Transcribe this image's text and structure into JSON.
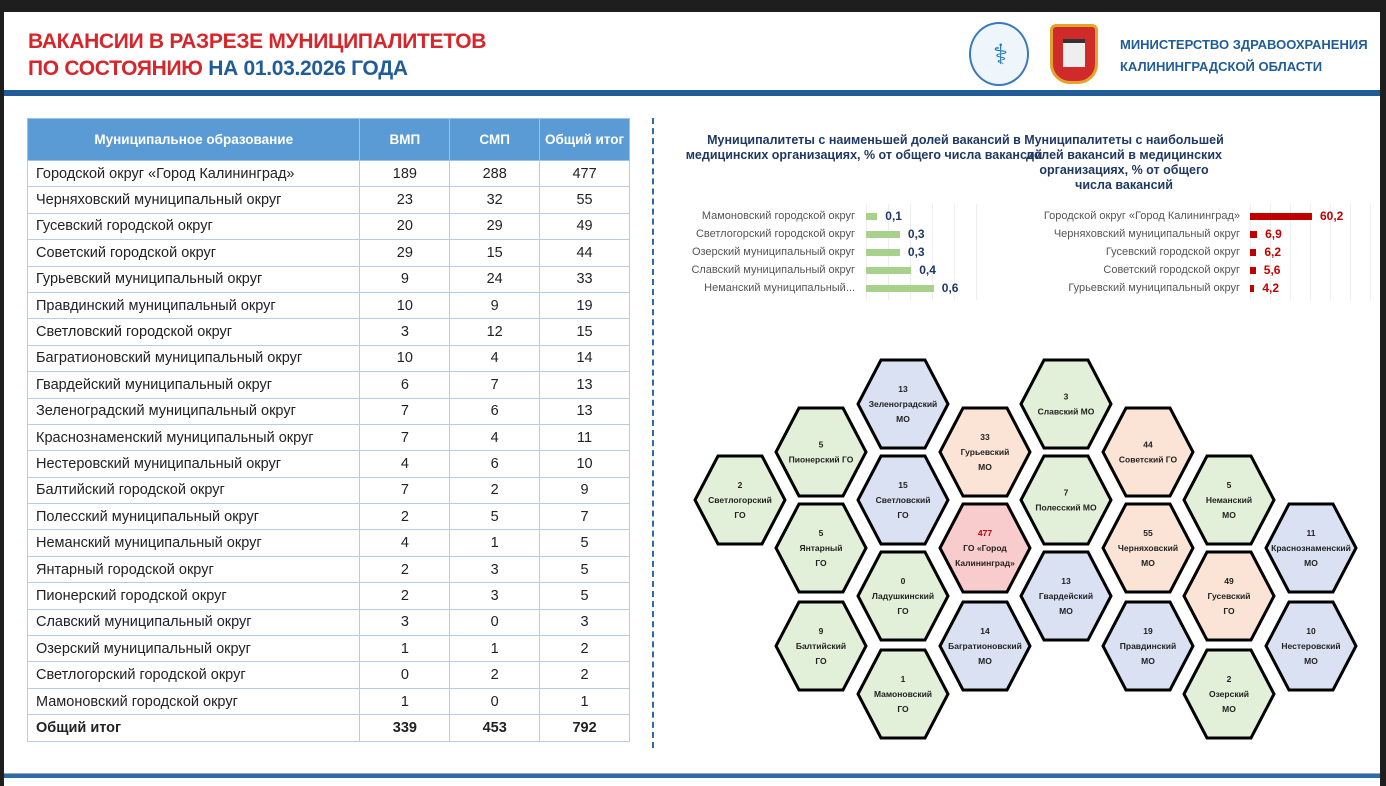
{
  "header": {
    "title_line1": "ВАКАНСИИ В РАЗРЕЗЕ МУНИЦИПАЛИТЕТОВ",
    "title_line2_red": "ПО СОСТОЯНИЮ",
    "title_line2_blue": "НА 01.03.2026 ГОДА",
    "ministry_line1": "МИНИСТЕРСТВО ЗДРАВООХРАНЕНИЯ",
    "ministry_line2": "КАЛИНИНГРАДСКОЙ ОБЛАСТИ"
  },
  "table": {
    "headers": [
      "Муниципальное образование",
      "ВМП",
      "СМП",
      "Общий итог"
    ],
    "rows": [
      [
        "Городской округ «Город Калининград»",
        "189",
        "288",
        "477"
      ],
      [
        "Черняховский муниципальный округ",
        "23",
        "32",
        "55"
      ],
      [
        "Гусевский городской округ",
        "20",
        "29",
        "49"
      ],
      [
        "Советский городской округ",
        "29",
        "15",
        "44"
      ],
      [
        "Гурьевский муниципальный округ",
        "9",
        "24",
        "33"
      ],
      [
        "Правдинский муниципальный округ",
        "10",
        "9",
        "19"
      ],
      [
        "Светловский городской округ",
        "3",
        "12",
        "15"
      ],
      [
        "Багратионовский муниципальный округ",
        "10",
        "4",
        "14"
      ],
      [
        "Гвардейский муниципальный округ",
        "6",
        "7",
        "13"
      ],
      [
        "Зеленоградский муниципальный округ",
        "7",
        "6",
        "13"
      ],
      [
        "Краснознаменский муниципальный округ",
        "7",
        "4",
        "11"
      ],
      [
        "Нестеровский муниципальный округ",
        "4",
        "6",
        "10"
      ],
      [
        "Балтийский городской округ",
        "7",
        "2",
        "9"
      ],
      [
        "Полесский муниципальный округ",
        "2",
        "5",
        "7"
      ],
      [
        "Неманский муниципальный округ",
        "4",
        "1",
        "5"
      ],
      [
        "Янтарный городской округ",
        "2",
        "3",
        "5"
      ],
      [
        "Пионерский городской округ",
        "2",
        "3",
        "5"
      ],
      [
        "Славский муниципальный округ",
        "3",
        "0",
        "3"
      ],
      [
        "Озерский муниципальный округ",
        "1",
        "1",
        "2"
      ],
      [
        "Светлогорский городской округ",
        "0",
        "2",
        "2"
      ],
      [
        "Мамоновский городской округ",
        "1",
        "0",
        "1"
      ]
    ],
    "total": [
      "Общий итог",
      "339",
      "453",
      "792"
    ]
  },
  "chart_data": [
    {
      "type": "bar",
      "title": "Муниципалитеты с наименьшей долей вакансий в медицинских организациях, % от общего числа вакансий",
      "color": "#a9d18e",
      "categories": [
        "Мамоновский городской округ",
        "Светлогорский городской округ",
        "Озерский муниципальный округ",
        "Славский муниципальный округ",
        "Неманский муниципальный..."
      ],
      "values": [
        0.1,
        0.3,
        0.3,
        0.4,
        0.6
      ],
      "labels": [
        "0,1",
        "0,3",
        "0,3",
        "0,4",
        "0,6"
      ],
      "xlim": [
        0,
        1
      ]
    },
    {
      "type": "bar",
      "title": "Муниципалитеты с наибольшей долей вакансий в медицинских организациях, % от общего числа вакансий",
      "color": "#c00000",
      "categories": [
        "Городской округ «Город Калининград»",
        "Черняховский муниципальный округ",
        "Гусевский городской округ",
        "Советский городской округ",
        "Гурьевский муниципальный округ"
      ],
      "values": [
        60.2,
        6.9,
        6.2,
        5.6,
        4.2
      ],
      "labels": [
        "60,2",
        "6,9",
        "6,2",
        "5,6",
        "4,2"
      ],
      "xlim": [
        0,
        100
      ]
    }
  ],
  "hexmap": {
    "colors": {
      "green": "#e2efd9",
      "blue": "#d9e1f2",
      "peach": "#fbe4d5",
      "pink": "#f8cbcc"
    },
    "cells": [
      {
        "value": "2",
        "name": [
          "Светлогорский",
          "ГО"
        ],
        "color": "green"
      },
      {
        "value": "5",
        "name": [
          "Пионерский ГО"
        ],
        "color": "green"
      },
      {
        "value": "5",
        "name": [
          "Янтарный",
          "ГО"
        ],
        "color": "green"
      },
      {
        "value": "9",
        "name": [
          "Балтийский",
          "ГО"
        ],
        "color": "green"
      },
      {
        "value": "13",
        "name": [
          "Зеленоградский",
          "МО"
        ],
        "color": "blue"
      },
      {
        "value": "15",
        "name": [
          "Светловский",
          "ГО"
        ],
        "color": "blue"
      },
      {
        "value": "0",
        "name": [
          "Ладушкинский",
          "ГО"
        ],
        "color": "green"
      },
      {
        "value": "1",
        "name": [
          "Мамоновский",
          "ГО"
        ],
        "color": "green"
      },
      {
        "value": "33",
        "name": [
          "Гурьевский",
          "МО"
        ],
        "color": "peach"
      },
      {
        "value": "477",
        "name": [
          "ГО «Город",
          "Калининград»"
        ],
        "color": "pink"
      },
      {
        "value": "14",
        "name": [
          "Багратионовский",
          "МО"
        ],
        "color": "blue"
      },
      {
        "value": "3",
        "name": [
          "Славский МО"
        ],
        "color": "green"
      },
      {
        "value": "7",
        "name": [
          "Полесский МО"
        ],
        "color": "green"
      },
      {
        "value": "13",
        "name": [
          "Гвардейский",
          "МО"
        ],
        "color": "blue"
      },
      {
        "value": "44",
        "name": [
          "Советский ГО"
        ],
        "color": "peach"
      },
      {
        "value": "55",
        "name": [
          "Черняховский",
          "МО"
        ],
        "color": "peach"
      },
      {
        "value": "19",
        "name": [
          "Правдинский",
          "МО"
        ],
        "color": "blue"
      },
      {
        "value": "5",
        "name": [
          "Неманский",
          "МО"
        ],
        "color": "green"
      },
      {
        "value": "49",
        "name": [
          "Гусевский",
          "ГО"
        ],
        "color": "peach"
      },
      {
        "value": "2",
        "name": [
          "Озерский",
          "МО"
        ],
        "color": "green"
      },
      {
        "value": "11",
        "name": [
          "Краснознаменский",
          "МО"
        ],
        "color": "blue"
      },
      {
        "value": "10",
        "name": [
          "Нестеровский",
          "МО"
        ],
        "color": "blue"
      }
    ]
  }
}
